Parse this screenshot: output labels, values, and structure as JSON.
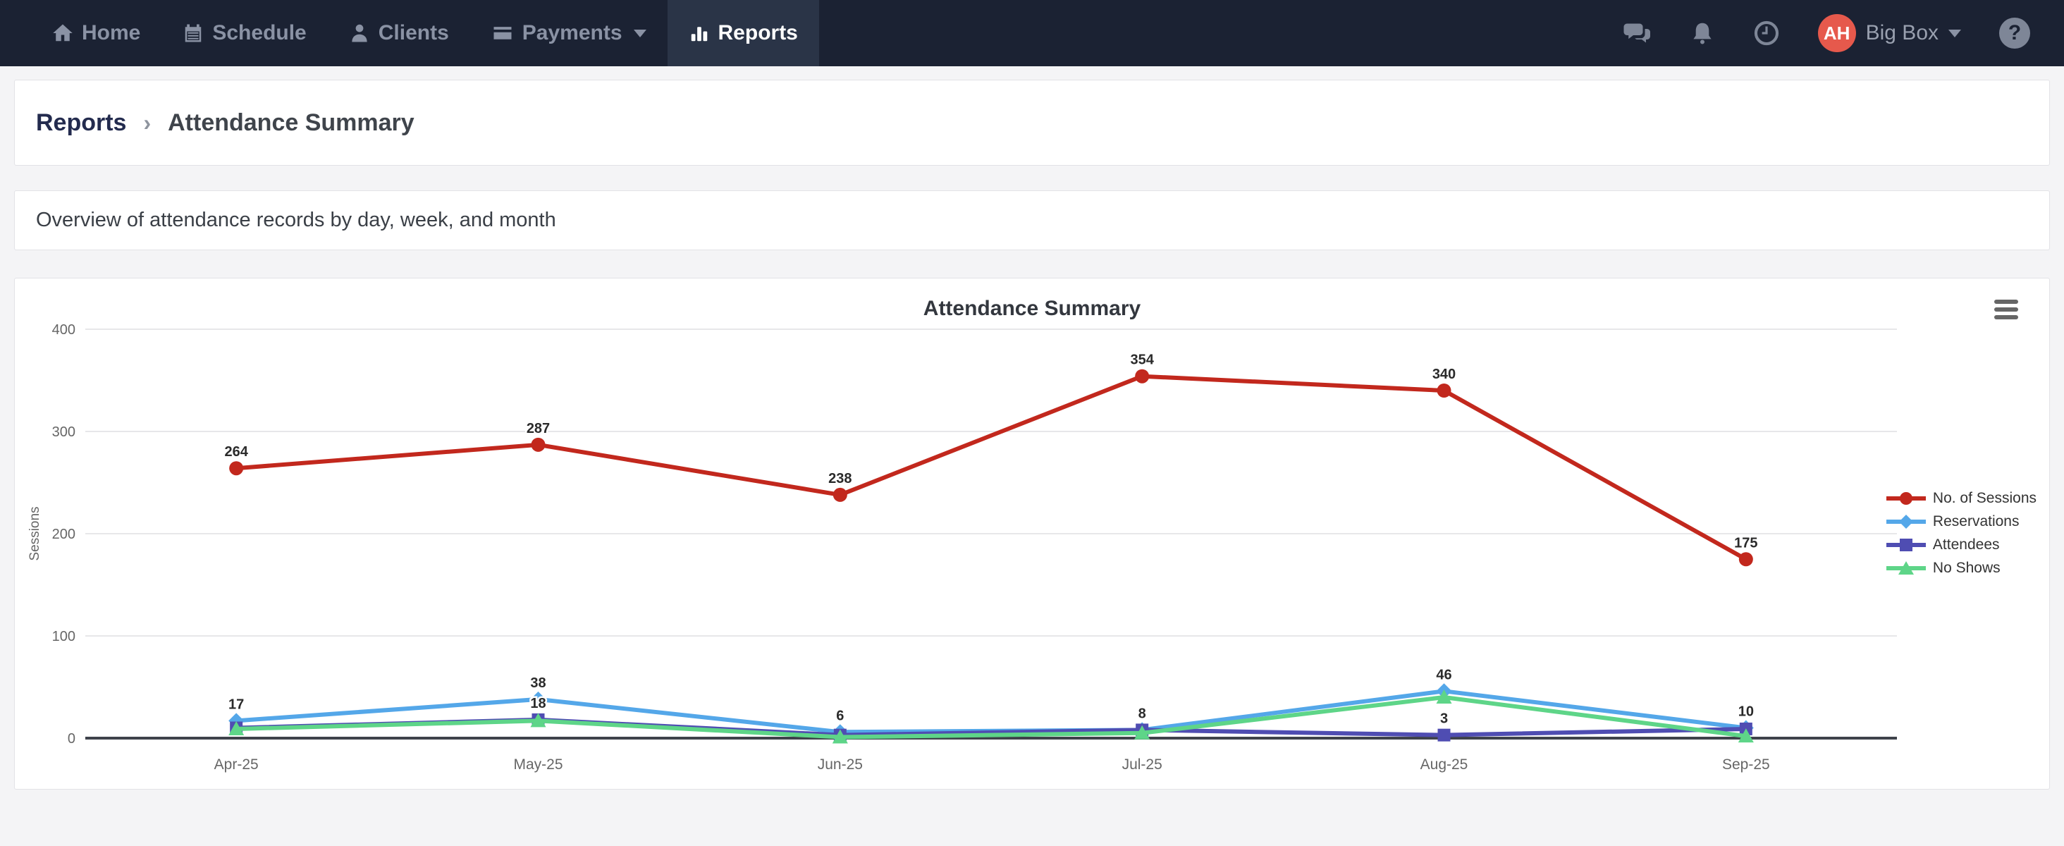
{
  "nav": {
    "items": [
      {
        "label": "Home",
        "icon": "home-icon",
        "active": false
      },
      {
        "label": "Schedule",
        "icon": "calendar-icon",
        "active": false
      },
      {
        "label": "Clients",
        "icon": "person-icon",
        "active": false
      },
      {
        "label": "Payments",
        "icon": "credit-card-icon",
        "active": false,
        "has_dropdown": true
      },
      {
        "label": "Reports",
        "icon": "bar-chart-icon",
        "active": true
      }
    ],
    "right": {
      "icons": [
        "chat-icon",
        "bell-icon",
        "clock-icon"
      ],
      "avatar_initials": "AH",
      "avatar_color": "#E6594C",
      "account_name": "Big Box",
      "help": "?"
    }
  },
  "breadcrumb": {
    "parent": "Reports",
    "separator": "›",
    "current": "Attendance Summary"
  },
  "description": "Overview of attendance records by day, week, and month",
  "theme": {
    "nav_bg": "#1B2233",
    "nav_active_bg": "#2A3447",
    "page_bg": "#F4F4F6",
    "grid_color": "#E7E7E9",
    "axis_line_color": "#3F434B",
    "axis_text_color": "#666666"
  },
  "chart_data": {
    "type": "line",
    "title": "Attendance Summary",
    "ylabel": "Sessions",
    "xlabel": "",
    "categories": [
      "Apr-25",
      "May-25",
      "Jun-25",
      "Jul-25",
      "Aug-25",
      "Sep-25"
    ],
    "ylim": [
      0,
      400
    ],
    "yticks": [
      0,
      100,
      200,
      300,
      400
    ],
    "grid": true,
    "legend_position": "right",
    "series": [
      {
        "name": "No. of Sessions",
        "color": "#C2281D",
        "marker": "circle",
        "values": [
          264,
          287,
          238,
          354,
          340,
          175
        ],
        "labels": [
          264,
          287,
          238,
          354,
          340,
          175
        ]
      },
      {
        "name": "Reservations",
        "color": "#54A7E9",
        "marker": "diamond",
        "values": [
          17,
          38,
          6,
          8,
          46,
          10
        ],
        "labels": [
          17,
          38,
          6,
          null,
          46,
          10
        ]
      },
      {
        "name": "Attendees",
        "color": "#4F4DB2",
        "marker": "square",
        "values": [
          10,
          18,
          3,
          8,
          3,
          9
        ],
        "labels": [
          null,
          18,
          null,
          8,
          3,
          null
        ]
      },
      {
        "name": "No Shows",
        "color": "#5ED588",
        "marker": "triangle",
        "values": [
          9,
          17,
          1,
          5,
          40,
          2
        ],
        "labels": [
          null,
          null,
          null,
          null,
          null,
          null
        ]
      }
    ]
  }
}
